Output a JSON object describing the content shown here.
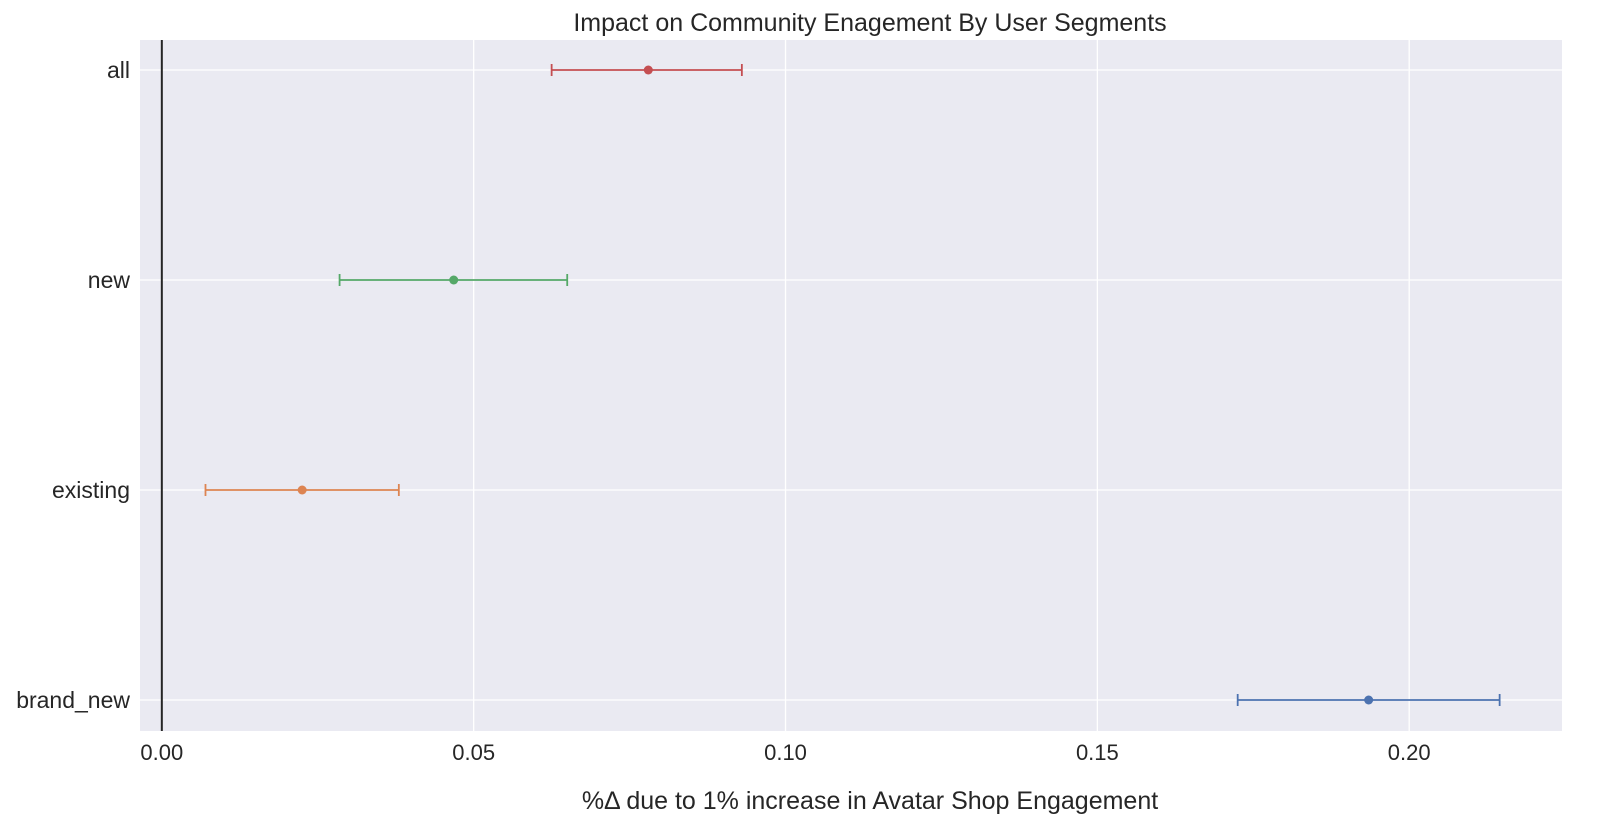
{
  "chart_data": {
    "type": "scatter",
    "title": "Impact on Community Enagement By User Segments",
    "xlabel": "%Δ due to 1% increase in Avatar Shop Engagement",
    "ylabel": "",
    "xlim": [
      -0.0035,
      0.2245
    ],
    "x_ticks": [
      0.0,
      0.05,
      0.1,
      0.15,
      0.2
    ],
    "x_tick_labels": [
      "0.00",
      "0.05",
      "0.10",
      "0.15",
      "0.20"
    ],
    "reference_line_x": 0.0,
    "categories": [
      "all",
      "new",
      "existing",
      "brand_new"
    ],
    "points": [
      {
        "category": "all",
        "estimate": 0.078,
        "ci_low": 0.0625,
        "ci_high": 0.093,
        "color": "#c44e52"
      },
      {
        "category": "new",
        "estimate": 0.0468,
        "ci_low": 0.0285,
        "ci_high": 0.065,
        "color": "#55a868"
      },
      {
        "category": "existing",
        "estimate": 0.0225,
        "ci_low": 0.007,
        "ci_high": 0.038,
        "color": "#dd8452"
      },
      {
        "category": "brand_new",
        "estimate": 0.1935,
        "ci_low": 0.1725,
        "ci_high": 0.2145,
        "color": "#4c72b0"
      }
    ],
    "grid": true,
    "background_color": "#eaeaf2",
    "grid_color": "#ffffff"
  }
}
